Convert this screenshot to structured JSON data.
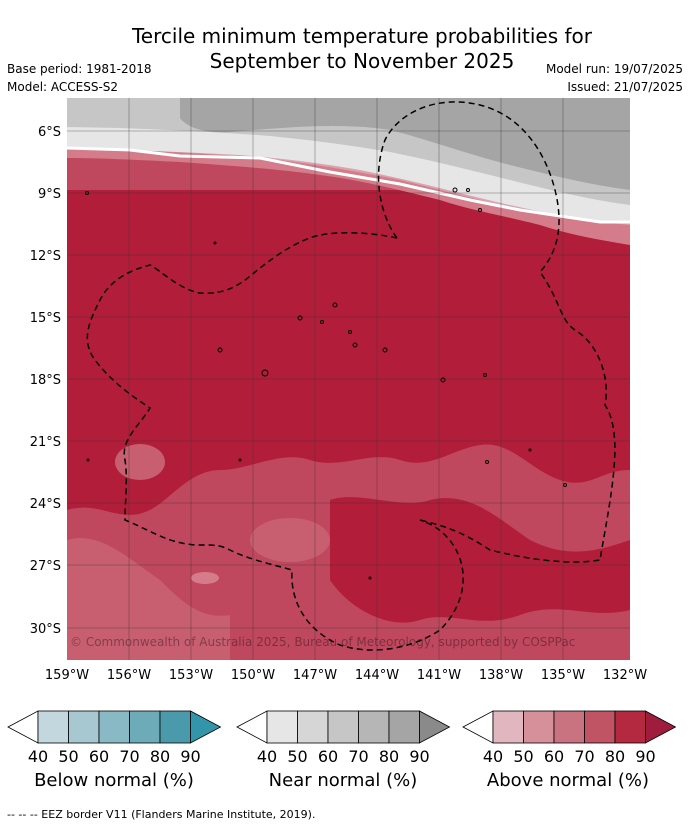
{
  "title_line1": "Tercile minimum temperature probabilities for",
  "title_line2": "September to November 2025",
  "meta": {
    "base_period": "Base period: 1981-2018",
    "model": "Model: ACCESS-S2",
    "model_run": "Model run: 19/07/2025",
    "issued": "Issued: 21/07/2025"
  },
  "map": {
    "lat_labels": [
      "6°S",
      "9°S",
      "12°S",
      "15°S",
      "18°S",
      "21°S",
      "24°S",
      "27°S",
      "30°S"
    ],
    "lon_labels": [
      "159°W",
      "156°W",
      "153°W",
      "150°W",
      "147°W",
      "144°W",
      "141°W",
      "138°W",
      "135°W",
      "132°W"
    ],
    "copyright": "© Commonwealth of Australia 2025, Bureau of Meteorology, supported by COSPPac"
  },
  "legends": [
    {
      "label": "Below normal (%)",
      "ticks": [
        "40",
        "50",
        "60",
        "70",
        "80",
        "90"
      ],
      "colors": [
        "#ffffff",
        "#c3d7de",
        "#a8c8d1",
        "#8ab9c6",
        "#6eabb9",
        "#4b9aac",
        "#3395aa"
      ]
    },
    {
      "label": "Near normal (%)",
      "ticks": [
        "40",
        "50",
        "60",
        "70",
        "80",
        "90"
      ],
      "colors": [
        "#ffffff",
        "#e6e6e6",
        "#d6d6d6",
        "#c6c6c6",
        "#b6b6b6",
        "#a5a5a5",
        "#8a8a8a"
      ]
    },
    {
      "label": "Above normal (%)",
      "ticks": [
        "40",
        "50",
        "60",
        "70",
        "80",
        "90"
      ],
      "colors": [
        "#ffffff",
        "#e2b6bf",
        "#d59099",
        "#c97280",
        "#c05465",
        "#b42940",
        "#a01c3c"
      ]
    }
  ],
  "footnote": "--  --  -- EEZ border V11 (Flanders Marine Institute, 2019)."
}
